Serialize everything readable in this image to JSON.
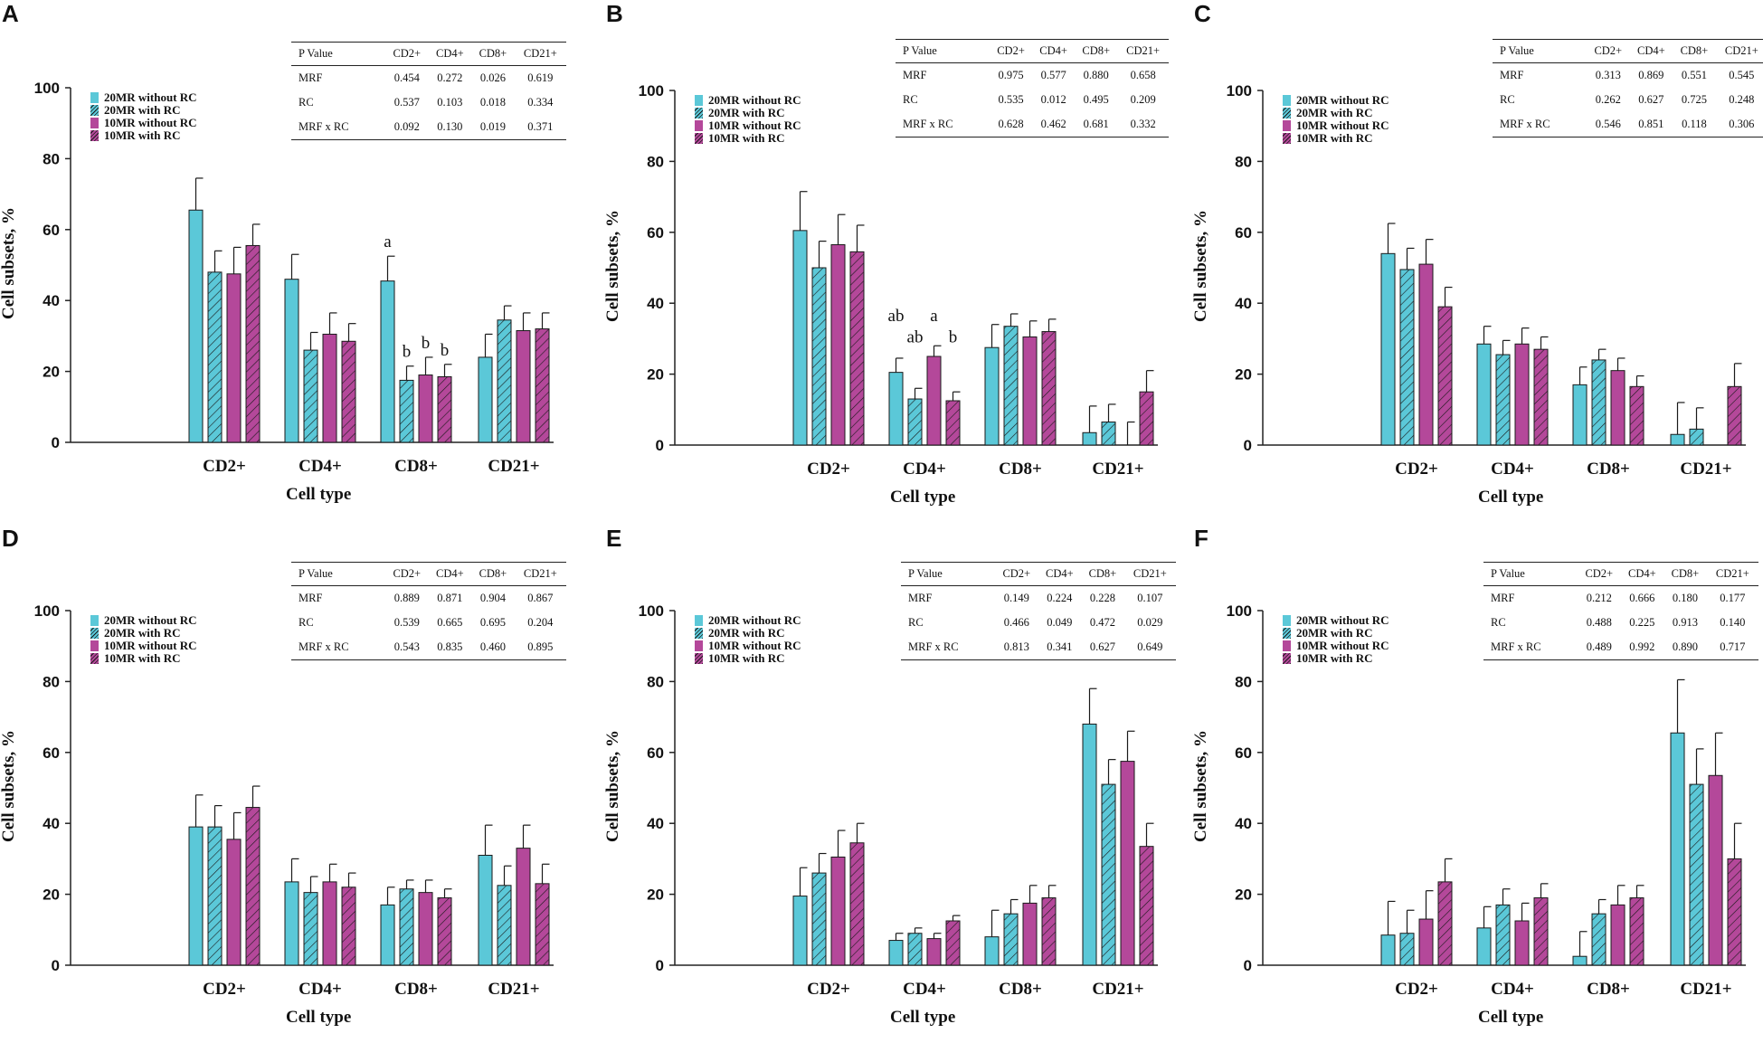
{
  "colors": {
    "cyan": "#5BC8D8",
    "magenta": "#B4489A",
    "axis": "#222222"
  },
  "legend": [
    "20MR without  RC",
    "20MR with  RC",
    "10MR without  RC",
    "10MR with  RC"
  ],
  "chart_data": [
    {
      "panel": "A",
      "type": "bar",
      "xlabel": "Cell type",
      "ylabel": "Cell subsets, %",
      "ylim": [
        0,
        100
      ],
      "yticks": [
        "0",
        "20",
        "40",
        "60",
        "80",
        "100"
      ],
      "categories": [
        "CD2+",
        "CD4+",
        "CD8+",
        "CD21+"
      ],
      "series": [
        {
          "name": "20MR without  RC",
          "values": [
            65.5,
            46,
            45.5,
            24
          ],
          "errors": [
            9,
            7,
            7,
            6.5
          ]
        },
        {
          "name": "20MR with  RC",
          "values": [
            48,
            26,
            17.5,
            34.5
          ],
          "errors": [
            6,
            5,
            4,
            4
          ]
        },
        {
          "name": "10MR without  RC",
          "values": [
            47.5,
            30.5,
            19,
            31.5
          ],
          "errors": [
            7.5,
            6,
            5,
            5
          ]
        },
        {
          "name": "10MR with  RC",
          "values": [
            55.5,
            28.5,
            18.5,
            32
          ],
          "errors": [
            6,
            5,
            3.5,
            4.5
          ]
        }
      ],
      "annotations": [
        {
          "text": "a",
          "category": 2,
          "series": 0
        },
        {
          "text": "b",
          "category": 2,
          "series": 1
        },
        {
          "text": "b",
          "category": 2,
          "series": 2
        },
        {
          "text": "b",
          "category": 2,
          "series": 3
        }
      ],
      "pvalue_table": {
        "header": [
          "P Value",
          "CD2+",
          "CD4+",
          "CD8+",
          "CD21+"
        ],
        "rows": [
          [
            "MRF",
            "0.454",
            "0.272",
            "0.026",
            "0.619"
          ],
          [
            "RC",
            "0.537",
            "0.103",
            "0.018",
            "0.334"
          ],
          [
            "MRF x RC",
            "0.092",
            "0.130",
            "0.019",
            "0.371"
          ]
        ]
      }
    },
    {
      "panel": "B",
      "type": "bar",
      "xlabel": "Cell type",
      "ylabel": "Cell subsets, %",
      "ylim": [
        0,
        100
      ],
      "yticks": [
        "0",
        "20",
        "40",
        "60",
        "80",
        "100"
      ],
      "categories": [
        "CD2+",
        "CD4+",
        "CD8+",
        "CD21+"
      ],
      "series": [
        {
          "name": "20MR without  RC",
          "values": [
            60.5,
            20.5,
            27.5,
            3.5
          ],
          "errors": [
            11,
            4,
            6.5,
            7.5
          ]
        },
        {
          "name": "20MR with  RC",
          "values": [
            50,
            13,
            33.5,
            6.5
          ],
          "errors": [
            7.5,
            3,
            3.5,
            5
          ]
        },
        {
          "name": "10MR without  RC",
          "values": [
            56.5,
            25,
            30.5,
            0
          ],
          "errors": [
            8.5,
            3,
            4.5,
            6.5
          ]
        },
        {
          "name": "10MR with  RC",
          "values": [
            54.5,
            12.5,
            32,
            15
          ],
          "errors": [
            7.5,
            2.5,
            3.5,
            6
          ]
        }
      ],
      "annotations": [
        {
          "text": "ab",
          "category": 1,
          "series": 0
        },
        {
          "text": "ab",
          "category": 1,
          "series": 1
        },
        {
          "text": "a",
          "category": 1,
          "series": 2
        },
        {
          "text": "b",
          "category": 1,
          "series": 3
        }
      ],
      "pvalue_table": {
        "header": [
          "P Value",
          "CD2+",
          "CD4+",
          "CD8+",
          "CD21+"
        ],
        "rows": [
          [
            "MRF",
            "0.975",
            "0.577",
            "0.880",
            "0.658"
          ],
          [
            "RC",
            "0.535",
            "0.012",
            "0.495",
            "0.209"
          ],
          [
            "MRF x RC",
            "0.628",
            "0.462",
            "0.681",
            "0.332"
          ]
        ]
      }
    },
    {
      "panel": "C",
      "type": "bar",
      "xlabel": "Cell type",
      "ylabel": "Cell subsets, %",
      "ylim": [
        0,
        100
      ],
      "yticks": [
        "0",
        "20",
        "40",
        "60",
        "80",
        "100"
      ],
      "categories": [
        "CD2+",
        "CD4+",
        "CD8+",
        "CD21+"
      ],
      "series": [
        {
          "name": "20MR without  RC",
          "values": [
            54,
            28.5,
            17,
            3
          ],
          "errors": [
            8.5,
            5,
            5,
            9
          ]
        },
        {
          "name": "20MR with  RC",
          "values": [
            49.5,
            25.5,
            24,
            4.5
          ],
          "errors": [
            6,
            4,
            3,
            6
          ]
        },
        {
          "name": "10MR without  RC",
          "values": [
            51,
            28.5,
            21,
            0
          ],
          "errors": [
            7,
            4.5,
            3.5,
            0
          ]
        },
        {
          "name": "10MR with  RC",
          "values": [
            39,
            27,
            16.5,
            16.5
          ],
          "errors": [
            5.5,
            3.5,
            3,
            6.5
          ]
        }
      ],
      "annotations": [],
      "pvalue_table": {
        "header": [
          "P Value",
          "CD2+",
          "CD4+",
          "CD8+",
          "CD21+"
        ],
        "rows": [
          [
            "MRF",
            "0.313",
            "0.869",
            "0.551",
            "0.545"
          ],
          [
            "RC",
            "0.262",
            "0.627",
            "0.725",
            "0.248"
          ],
          [
            "MRF x RC",
            "0.546",
            "0.851",
            "0.118",
            "0.306"
          ]
        ]
      }
    },
    {
      "panel": "D",
      "type": "bar",
      "xlabel": "Cell type",
      "ylabel": "Cell subsets, %",
      "ylim": [
        0,
        100
      ],
      "yticks": [
        "0",
        "20",
        "40",
        "60",
        "80",
        "100"
      ],
      "categories": [
        "CD2+",
        "CD4+",
        "CD8+",
        "CD21+"
      ],
      "series": [
        {
          "name": "20MR without  RC",
          "values": [
            39,
            23.5,
            17,
            31
          ],
          "errors": [
            9,
            6.5,
            5,
            8.5
          ]
        },
        {
          "name": "20MR with  RC",
          "values": [
            39,
            20.5,
            21.5,
            22.5
          ],
          "errors": [
            6,
            4.5,
            2.5,
            5.5
          ]
        },
        {
          "name": "10MR without  RC",
          "values": [
            35.5,
            23.5,
            20.5,
            33
          ],
          "errors": [
            7.5,
            5,
            3.5,
            6.5
          ]
        },
        {
          "name": "10MR with  RC",
          "values": [
            44.5,
            22,
            19,
            23
          ],
          "errors": [
            6,
            4,
            2.5,
            5.5
          ]
        }
      ],
      "annotations": [],
      "pvalue_table": {
        "header": [
          "P Value",
          "CD2+",
          "CD4+",
          "CD8+",
          "CD21+"
        ],
        "rows": [
          [
            "MRF",
            "0.889",
            "0.871",
            "0.904",
            "0.867"
          ],
          [
            "RC",
            "0.539",
            "0.665",
            "0.695",
            "0.204"
          ],
          [
            "MRF x RC",
            "0.543",
            "0.835",
            "0.460",
            "0.895"
          ]
        ]
      }
    },
    {
      "panel": "E",
      "type": "bar",
      "xlabel": "Cell type",
      "ylabel": "Cell subsets, %",
      "ylim": [
        0,
        100
      ],
      "yticks": [
        "0",
        "20",
        "40",
        "60",
        "80",
        "100"
      ],
      "categories": [
        "CD2+",
        "CD4+",
        "CD8+",
        "CD21+"
      ],
      "series": [
        {
          "name": "20MR without  RC",
          "values": [
            19.5,
            7,
            8,
            68
          ],
          "errors": [
            8,
            2,
            7.5,
            10
          ]
        },
        {
          "name": "20MR with  RC",
          "values": [
            26,
            9,
            14.5,
            51
          ],
          "errors": [
            5.5,
            1.5,
            4,
            7
          ]
        },
        {
          "name": "10MR without  RC",
          "values": [
            30.5,
            7.5,
            17.5,
            57.5
          ],
          "errors": [
            7.5,
            1.5,
            5,
            8.5
          ]
        },
        {
          "name": "10MR with  RC",
          "values": [
            34.5,
            12.5,
            19,
            33.5
          ],
          "errors": [
            5.5,
            1.5,
            3.5,
            6.5
          ]
        }
      ],
      "annotations": [],
      "pvalue_table": {
        "header": [
          "P Value",
          "CD2+",
          "CD4+",
          "CD8+",
          "CD21+"
        ],
        "rows": [
          [
            "MRF",
            "0.149",
            "0.224",
            "0.228",
            "0.107"
          ],
          [
            "RC",
            "0.466",
            "0.049",
            "0.472",
            "0.029"
          ],
          [
            "MRF x RC",
            "0.813",
            "0.341",
            "0.627",
            "0.649"
          ]
        ]
      }
    },
    {
      "panel": "F",
      "type": "bar",
      "xlabel": "Cell type",
      "ylabel": "Cell subsets, %",
      "ylim": [
        0,
        100
      ],
      "yticks": [
        "0",
        "20",
        "40",
        "60",
        "80",
        "100"
      ],
      "categories": [
        "CD2+",
        "CD4+",
        "CD8+",
        "CD21+"
      ],
      "series": [
        {
          "name": "20MR without  RC",
          "values": [
            8.5,
            10.5,
            2.5,
            65.5
          ],
          "errors": [
            9.5,
            6,
            7,
            15
          ]
        },
        {
          "name": "20MR with  RC",
          "values": [
            9,
            17,
            14.5,
            51
          ],
          "errors": [
            6.5,
            4.5,
            4,
            10
          ]
        },
        {
          "name": "10MR without  RC",
          "values": [
            13,
            12.5,
            17,
            53.5
          ],
          "errors": [
            8,
            5,
            5.5,
            12
          ]
        },
        {
          "name": "10MR with  RC",
          "values": [
            23.5,
            19,
            19,
            30
          ],
          "errors": [
            6.5,
            4,
            3.5,
            10
          ]
        }
      ],
      "annotations": [],
      "pvalue_table": {
        "header": [
          "P Value",
          "CD2+",
          "CD4+",
          "CD8+",
          "CD21+"
        ],
        "rows": [
          [
            "MRF",
            "0.212",
            "0.666",
            "0.180",
            "0.177"
          ],
          [
            "RC",
            "0.488",
            "0.225",
            "0.913",
            "0.140"
          ],
          [
            "MRF x RC",
            "0.489",
            "0.992",
            "0.890",
            "0.717"
          ]
        ]
      }
    }
  ]
}
